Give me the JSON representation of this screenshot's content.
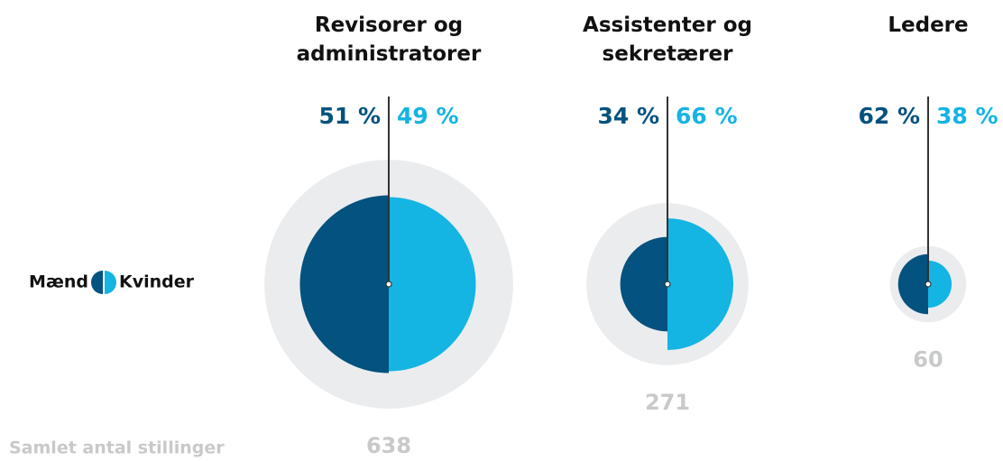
{
  "chart_data": {
    "type": "split-circle",
    "categories": [
      "Revisorer og administratorer",
      "Assistenter og sekretærer",
      "Ledere"
    ],
    "series": [
      {
        "name": "Mænd",
        "color": "#03527f",
        "values": [
          51,
          34,
          62
        ],
        "value_labels": [
          "51 %",
          "34 %",
          "62 %"
        ]
      },
      {
        "name": "Kvinder",
        "color": "#14b4e3",
        "values": [
          49,
          66,
          38
        ],
        "value_labels": [
          "49 %",
          "66 %",
          "38 %"
        ]
      }
    ],
    "totals_label": "Samlet antal stillinger",
    "totals": [
      638,
      271,
      60
    ],
    "totals_color": "#c8c9cb",
    "background_circle_color": "#ebecee"
  }
}
